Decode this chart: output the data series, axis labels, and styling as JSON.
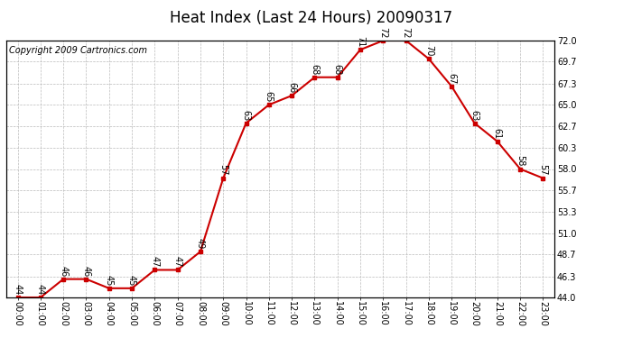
{
  "title": "Heat Index (Last 24 Hours) 20090317",
  "copyright": "Copyright 2009 Cartronics.com",
  "hours": [
    "00:00",
    "01:00",
    "02:00",
    "03:00",
    "04:00",
    "05:00",
    "06:00",
    "07:00",
    "08:00",
    "09:00",
    "10:00",
    "11:00",
    "12:00",
    "13:00",
    "14:00",
    "15:00",
    "16:00",
    "17:00",
    "18:00",
    "19:00",
    "20:00",
    "21:00",
    "22:00",
    "23:00"
  ],
  "values": [
    44,
    44,
    46,
    46,
    45,
    45,
    47,
    47,
    49,
    57,
    63,
    65,
    66,
    68,
    68,
    71,
    72,
    72,
    70,
    67,
    63,
    61,
    58,
    57
  ],
  "ylim_min": 44.0,
  "ylim_max": 72.0,
  "yticks": [
    44.0,
    46.3,
    48.7,
    51.0,
    53.3,
    55.7,
    58.0,
    60.3,
    62.7,
    65.0,
    67.3,
    69.7,
    72.0
  ],
  "line_color": "#cc0000",
  "marker_color": "#cc0000",
  "bg_color": "#ffffff",
  "grid_color": "#bbbbbb",
  "title_fontsize": 12,
  "value_fontsize": 7,
  "copyright_fontsize": 7,
  "tick_fontsize": 7
}
